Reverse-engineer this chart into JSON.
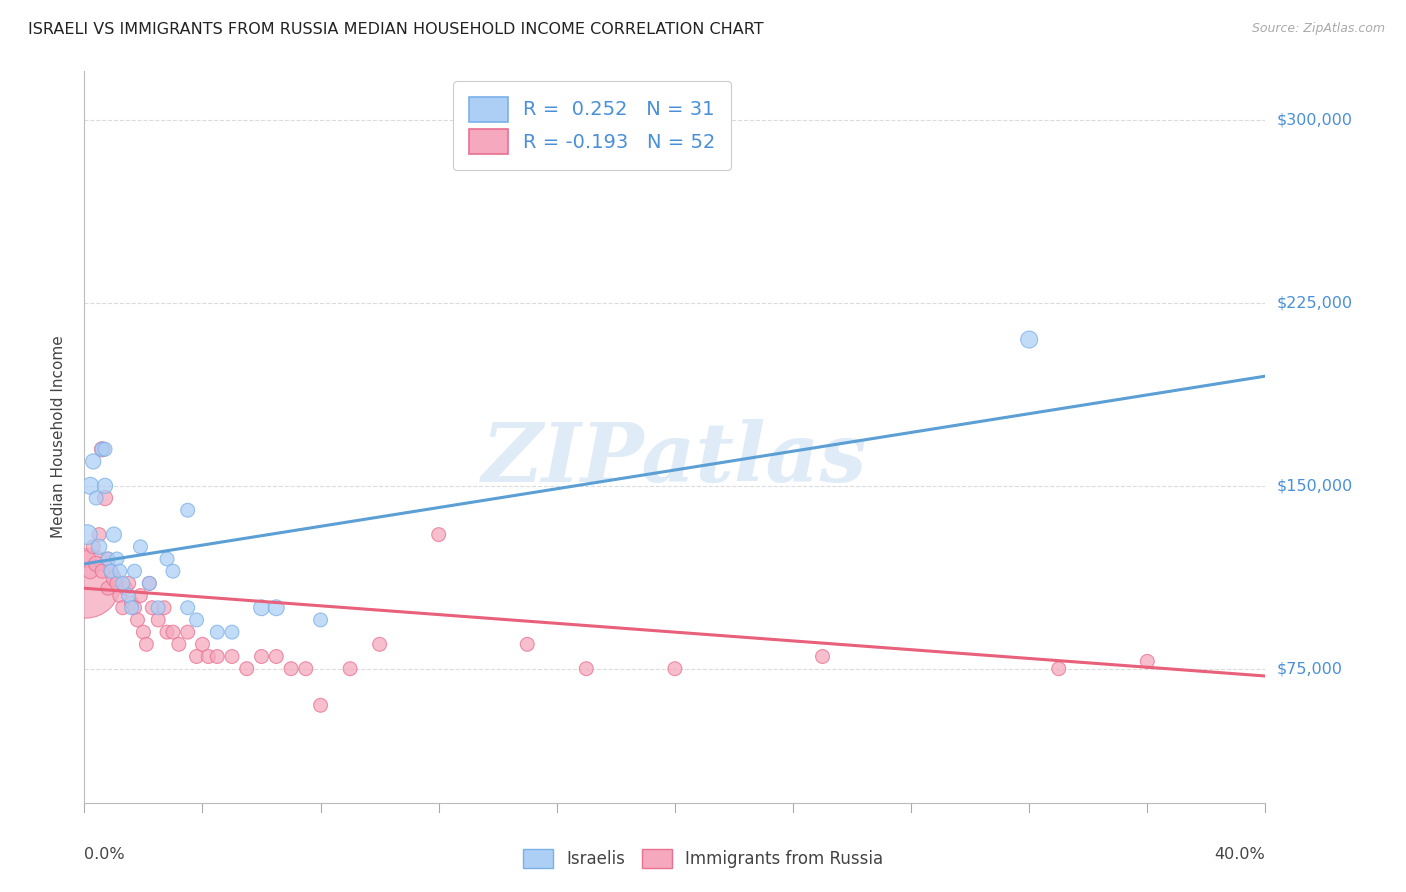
{
  "title": "ISRAELI VS IMMIGRANTS FROM RUSSIA MEDIAN HOUSEHOLD INCOME CORRELATION CHART",
  "source": "Source: ZipAtlas.com",
  "ylabel": "Median Household Income",
  "xmin": 0.0,
  "xmax": 0.4,
  "ymin": 20000,
  "ymax": 320000,
  "yticks": [
    75000,
    150000,
    225000,
    300000
  ],
  "ytick_labels": [
    "$75,000",
    "$150,000",
    "$225,000",
    "$300,000"
  ],
  "watermark": "ZIPatlas",
  "israelis_R": 0.252,
  "israelis_N": 31,
  "russia_R": -0.193,
  "russia_N": 52,
  "israeli_color": "#aecff5",
  "russia_color": "#f5a8be",
  "israeli_edge_color": "#7ab0e8",
  "russia_edge_color": "#e87090",
  "israeli_line_color": "#5b9fd4",
  "russia_line_color": "#e8607a",
  "background_color": "#ffffff",
  "grid_color": "#cccccc",
  "title_color": "#222222",
  "israelis_x": [
    0.001,
    0.002,
    0.003,
    0.004,
    0.005,
    0.006,
    0.007,
    0.007,
    0.008,
    0.009,
    0.01,
    0.011,
    0.012,
    0.013,
    0.015,
    0.016,
    0.017,
    0.019,
    0.022,
    0.025,
    0.028,
    0.03,
    0.035,
    0.038,
    0.05,
    0.06,
    0.065,
    0.08,
    0.32,
    0.035,
    0.045
  ],
  "israelis_y": [
    130000,
    150000,
    160000,
    145000,
    125000,
    165000,
    150000,
    165000,
    120000,
    115000,
    130000,
    120000,
    115000,
    110000,
    105000,
    100000,
    115000,
    125000,
    110000,
    100000,
    120000,
    115000,
    100000,
    95000,
    90000,
    100000,
    100000,
    95000,
    210000,
    140000,
    90000
  ],
  "israelis_sizes": [
    200,
    150,
    120,
    100,
    120,
    100,
    120,
    100,
    100,
    100,
    120,
    100,
    100,
    100,
    100,
    100,
    100,
    100,
    100,
    100,
    100,
    100,
    100,
    100,
    100,
    130,
    130,
    100,
    150,
    100,
    100
  ],
  "russia_x": [
    0.0005,
    0.001,
    0.002,
    0.003,
    0.004,
    0.005,
    0.006,
    0.006,
    0.007,
    0.008,
    0.008,
    0.009,
    0.01,
    0.011,
    0.012,
    0.013,
    0.014,
    0.015,
    0.016,
    0.017,
    0.018,
    0.019,
    0.02,
    0.021,
    0.022,
    0.023,
    0.025,
    0.027,
    0.028,
    0.03,
    0.032,
    0.035,
    0.038,
    0.04,
    0.042,
    0.045,
    0.05,
    0.055,
    0.06,
    0.065,
    0.07,
    0.075,
    0.08,
    0.09,
    0.1,
    0.12,
    0.15,
    0.17,
    0.2,
    0.25,
    0.33,
    0.36
  ],
  "russia_y": [
    110000,
    120000,
    115000,
    125000,
    118000,
    130000,
    165000,
    115000,
    145000,
    120000,
    108000,
    115000,
    112000,
    110000,
    105000,
    100000,
    108000,
    110000,
    102000,
    100000,
    95000,
    105000,
    90000,
    85000,
    110000,
    100000,
    95000,
    100000,
    90000,
    90000,
    85000,
    90000,
    80000,
    85000,
    80000,
    80000,
    80000,
    75000,
    80000,
    80000,
    75000,
    75000,
    60000,
    75000,
    85000,
    130000,
    85000,
    75000,
    75000,
    80000,
    75000,
    78000
  ],
  "russia_sizes": [
    2500,
    150,
    120,
    100,
    120,
    100,
    120,
    100,
    120,
    100,
    100,
    100,
    120,
    100,
    100,
    100,
    100,
    100,
    100,
    100,
    100,
    100,
    100,
    100,
    100,
    100,
    100,
    100,
    100,
    100,
    100,
    100,
    100,
    100,
    100,
    100,
    100,
    100,
    100,
    100,
    100,
    100,
    100,
    100,
    100,
    100,
    100,
    100,
    100,
    100,
    100,
    100
  ],
  "israeli_trend_x": [
    0.0,
    0.4
  ],
  "israeli_trend_y": [
    118000,
    195000
  ],
  "russia_trend_x": [
    0.0,
    0.4
  ],
  "russia_trend_y": [
    108000,
    72000
  ]
}
